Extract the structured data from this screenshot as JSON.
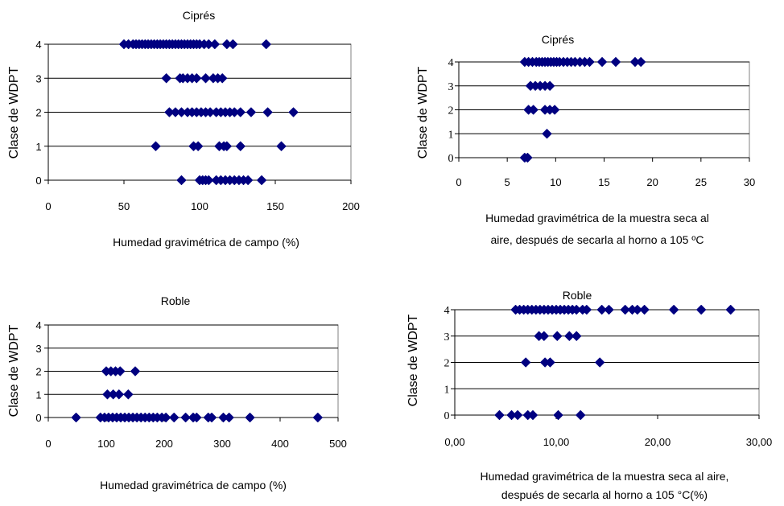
{
  "colors": {
    "marker": "#000080",
    "gridline": "#000000",
    "axis": "#808080",
    "plot_border": "#808080"
  },
  "chart_data": [
    {
      "type": "scatter",
      "title": "Ciprés",
      "xlabel": [
        "Humedad gravimétrica de campo (%)"
      ],
      "ylabel": "Clase de WDPT",
      "xlim": [
        0,
        200
      ],
      "ylim": [
        0,
        4
      ],
      "xticks": [
        "0",
        "50",
        "100",
        "150",
        "200"
      ],
      "yticks": [
        "0",
        "1",
        "2",
        "3",
        "4"
      ],
      "grid": "horizontal",
      "marker": "diamond",
      "points": [
        [
          50,
          4
        ],
        [
          53,
          4
        ],
        [
          56,
          4
        ],
        [
          58,
          4
        ],
        [
          60,
          4
        ],
        [
          62,
          4
        ],
        [
          64,
          4
        ],
        [
          66,
          4
        ],
        [
          68,
          4
        ],
        [
          70,
          4
        ],
        [
          72,
          4
        ],
        [
          74,
          4
        ],
        [
          76,
          4
        ],
        [
          78,
          4
        ],
        [
          80,
          4
        ],
        [
          82,
          4
        ],
        [
          84,
          4
        ],
        [
          86,
          4
        ],
        [
          88,
          4
        ],
        [
          90,
          4
        ],
        [
          92,
          4
        ],
        [
          94,
          4
        ],
        [
          96,
          4
        ],
        [
          98,
          4
        ],
        [
          100,
          4
        ],
        [
          103,
          4
        ],
        [
          106,
          4
        ],
        [
          110,
          4
        ],
        [
          118,
          4
        ],
        [
          122,
          4
        ],
        [
          144,
          4
        ],
        [
          78,
          3
        ],
        [
          87,
          3
        ],
        [
          89,
          3
        ],
        [
          92,
          3
        ],
        [
          95,
          3
        ],
        [
          98,
          3
        ],
        [
          104,
          3
        ],
        [
          109,
          3
        ],
        [
          112,
          3
        ],
        [
          115,
          3
        ],
        [
          80,
          2
        ],
        [
          84,
          2
        ],
        [
          88,
          2
        ],
        [
          92,
          2
        ],
        [
          95,
          2
        ],
        [
          98,
          2
        ],
        [
          101,
          2
        ],
        [
          104,
          2
        ],
        [
          107,
          2
        ],
        [
          111,
          2
        ],
        [
          114,
          2
        ],
        [
          117,
          2
        ],
        [
          120,
          2
        ],
        [
          123,
          2
        ],
        [
          127,
          2
        ],
        [
          134,
          2
        ],
        [
          145,
          2
        ],
        [
          162,
          2
        ],
        [
          71,
          1
        ],
        [
          96,
          1
        ],
        [
          99,
          1
        ],
        [
          113,
          1
        ],
        [
          116,
          1
        ],
        [
          118,
          1
        ],
        [
          127,
          1
        ],
        [
          154,
          1
        ],
        [
          88,
          0
        ],
        [
          100,
          0
        ],
        [
          102,
          0
        ],
        [
          104,
          0
        ],
        [
          106,
          0
        ],
        [
          111,
          0
        ],
        [
          114,
          0
        ],
        [
          117,
          0
        ],
        [
          120,
          0
        ],
        [
          123,
          0
        ],
        [
          126,
          0
        ],
        [
          129,
          0
        ],
        [
          132,
          0
        ],
        [
          141,
          0
        ]
      ]
    },
    {
      "type": "scatter",
      "title": "Ciprés",
      "xlabel": [
        "Humedad gravimétrica de la muestra seca al",
        "aire, después de secarla al horno a 105 ºC"
      ],
      "ylabel": "Clase de WDPT",
      "xlim": [
        0,
        30
      ],
      "ylim": [
        0,
        4
      ],
      "xticks": [
        "0",
        "5",
        "10",
        "15",
        "20",
        "25",
        "30"
      ],
      "yticks": [
        "0",
        "1",
        "2",
        "3",
        "4"
      ],
      "grid": "horizontal",
      "marker": "diamond",
      "points": [
        [
          6.8,
          4
        ],
        [
          7.2,
          4
        ],
        [
          7.6,
          4
        ],
        [
          8.0,
          4
        ],
        [
          8.3,
          4
        ],
        [
          8.6,
          4
        ],
        [
          8.9,
          4
        ],
        [
          9.2,
          4
        ],
        [
          9.5,
          4
        ],
        [
          9.8,
          4
        ],
        [
          10.1,
          4
        ],
        [
          10.4,
          4
        ],
        [
          10.8,
          4
        ],
        [
          11.2,
          4
        ],
        [
          11.6,
          4
        ],
        [
          12.0,
          4
        ],
        [
          12.5,
          4
        ],
        [
          13.0,
          4
        ],
        [
          13.5,
          4
        ],
        [
          14.8,
          4
        ],
        [
          16.2,
          4
        ],
        [
          18.2,
          4
        ],
        [
          18.8,
          4
        ],
        [
          7.4,
          3
        ],
        [
          7.9,
          3
        ],
        [
          8.4,
          3
        ],
        [
          8.9,
          3
        ],
        [
          9.4,
          3
        ],
        [
          7.2,
          2
        ],
        [
          7.7,
          2
        ],
        [
          8.9,
          2
        ],
        [
          9.4,
          2
        ],
        [
          9.9,
          2
        ],
        [
          9.1,
          1
        ],
        [
          6.8,
          0
        ],
        [
          7.1,
          0
        ]
      ]
    },
    {
      "type": "scatter",
      "title": "Roble",
      "xlabel": [
        "Humedad gravimétrica de campo (%)"
      ],
      "ylabel": "Clase de WDPT",
      "xlim": [
        0,
        500
      ],
      "ylim": [
        0,
        4
      ],
      "xticks": [
        "0",
        "100",
        "200",
        "300",
        "400",
        "500"
      ],
      "yticks": [
        "0",
        "1",
        "2",
        "3",
        "4"
      ],
      "grid": "horizontal",
      "marker": "diamond",
      "points": [
        [
          100,
          2
        ],
        [
          108,
          2
        ],
        [
          116,
          2
        ],
        [
          124,
          2
        ],
        [
          150,
          2
        ],
        [
          102,
          1
        ],
        [
          112,
          1
        ],
        [
          122,
          1
        ],
        [
          138,
          1
        ],
        [
          48,
          0
        ],
        [
          90,
          0
        ],
        [
          97,
          0
        ],
        [
          104,
          0
        ],
        [
          111,
          0
        ],
        [
          118,
          0
        ],
        [
          125,
          0
        ],
        [
          132,
          0
        ],
        [
          139,
          0
        ],
        [
          146,
          0
        ],
        [
          153,
          0
        ],
        [
          160,
          0
        ],
        [
          167,
          0
        ],
        [
          174,
          0
        ],
        [
          181,
          0
        ],
        [
          188,
          0
        ],
        [
          196,
          0
        ],
        [
          203,
          0
        ],
        [
          217,
          0
        ],
        [
          237,
          0
        ],
        [
          250,
          0
        ],
        [
          256,
          0
        ],
        [
          276,
          0
        ],
        [
          282,
          0
        ],
        [
          302,
          0
        ],
        [
          312,
          0
        ],
        [
          348,
          0
        ],
        [
          465,
          0
        ]
      ]
    },
    {
      "type": "scatter",
      "title": "Roble",
      "xlabel": [
        "Humedad gravimétrica de la muestra seca al aire,",
        "después de secarla al horno a 105 °C(%)"
      ],
      "ylabel": "Clase de WDPT",
      "xlim": [
        0,
        30
      ],
      "ylim": [
        0,
        4
      ],
      "xticks": [
        "0,00",
        "10,00",
        "20,00",
        "30,00"
      ],
      "yticks": [
        "0",
        "1",
        "2",
        "3",
        "4"
      ],
      "grid": "horizontal",
      "marker": "diamond",
      "points": [
        [
          6.0,
          4
        ],
        [
          6.4,
          4
        ],
        [
          6.8,
          4
        ],
        [
          7.2,
          4
        ],
        [
          7.6,
          4
        ],
        [
          8.0,
          4
        ],
        [
          8.4,
          4
        ],
        [
          8.8,
          4
        ],
        [
          9.2,
          4
        ],
        [
          9.6,
          4
        ],
        [
          10.0,
          4
        ],
        [
          10.4,
          4
        ],
        [
          10.8,
          4
        ],
        [
          11.2,
          4
        ],
        [
          11.6,
          4
        ],
        [
          12.0,
          4
        ],
        [
          12.6,
          4
        ],
        [
          13.0,
          4
        ],
        [
          14.5,
          4
        ],
        [
          15.2,
          4
        ],
        [
          16.8,
          4
        ],
        [
          17.5,
          4
        ],
        [
          18.0,
          4
        ],
        [
          18.7,
          4
        ],
        [
          21.6,
          4
        ],
        [
          24.3,
          4
        ],
        [
          27.2,
          4
        ],
        [
          8.3,
          3
        ],
        [
          8.8,
          3
        ],
        [
          10.1,
          3
        ],
        [
          11.3,
          3
        ],
        [
          12.0,
          3
        ],
        [
          7.0,
          2
        ],
        [
          8.9,
          2
        ],
        [
          9.4,
          2
        ],
        [
          14.3,
          2
        ],
        [
          4.4,
          0
        ],
        [
          5.6,
          0
        ],
        [
          6.2,
          0
        ],
        [
          7.2,
          0
        ],
        [
          7.7,
          0
        ],
        [
          10.2,
          0
        ],
        [
          12.4,
          0
        ]
      ]
    }
  ]
}
